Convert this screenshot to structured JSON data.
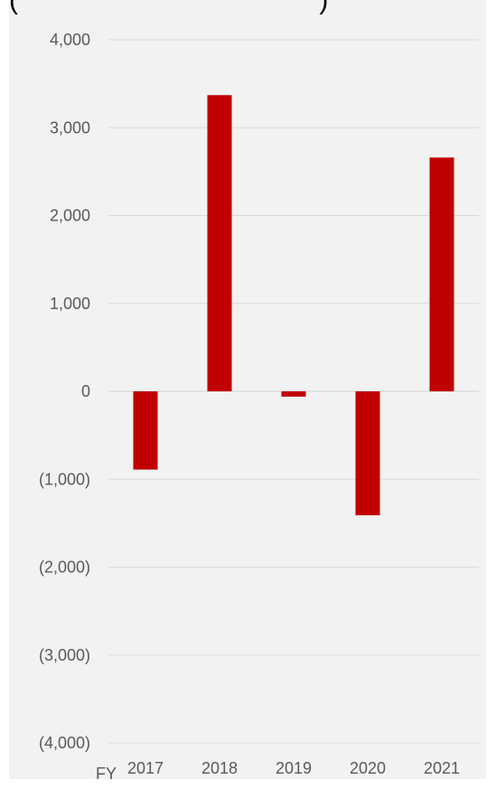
{
  "header_cutoff": "(                                        )",
  "chart_data": {
    "type": "bar",
    "title": "",
    "xlabel": "",
    "ylabel": "",
    "x_prefix": "FY",
    "categories": [
      "2017",
      "2018",
      "2019",
      "2020",
      "2021"
    ],
    "values": [
      -890,
      3370,
      -60,
      -1410,
      2660
    ],
    "ylim": [
      -4000,
      4000
    ],
    "y_ticks": [
      4000,
      3000,
      2000,
      1000,
      0,
      -1000,
      -2000,
      -3000,
      -4000
    ],
    "y_tick_labels": [
      "4,000",
      "3,000",
      "2,000",
      "1,000",
      "0",
      "(1,000)",
      "(2,000)",
      "(3,000)",
      "(4,000)"
    ],
    "grid": true,
    "bar_color": "#c00000",
    "background": "#f2f2f2"
  }
}
